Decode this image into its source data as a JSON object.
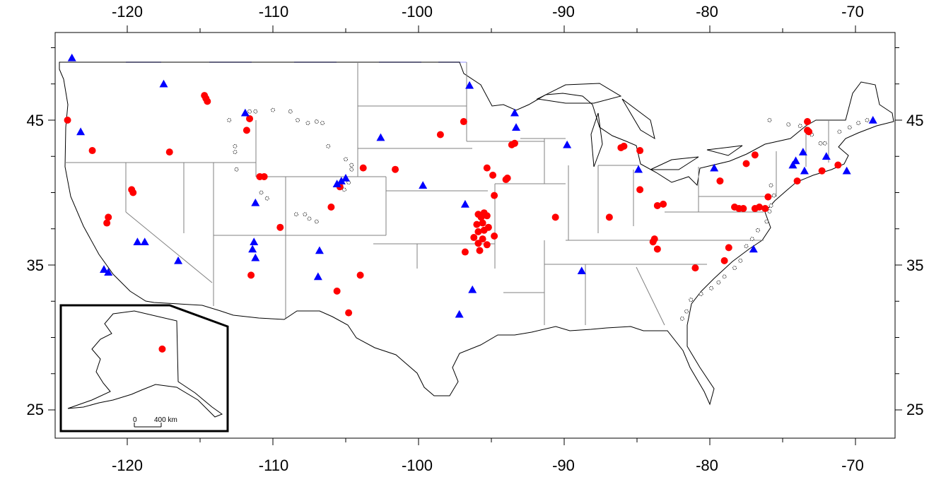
{
  "map": {
    "x_ticks": [
      "-120",
      "-110",
      "-100",
      "-90",
      "-80",
      "-70"
    ],
    "y_ticks": [
      "45",
      "35",
      "25"
    ],
    "inset": {
      "scale_zero": "0",
      "scale_label": "400 km"
    },
    "colors": {
      "circle_marker": "#ff0000",
      "triangle_marker": "#0000ff",
      "open_marker": "#000000",
      "boundary": "#000000",
      "state_line": "#808080",
      "canada_border": "#c8c8ff"
    },
    "markers": {
      "red_circles": [
        [
          -124.1,
          45.0
        ],
        [
          -122.4,
          42.9
        ],
        [
          -117.1,
          42.8
        ],
        [
          -114.7,
          46.7
        ],
        [
          -114.6,
          46.5
        ],
        [
          -114.5,
          46.3
        ],
        [
          -111.6,
          45.1
        ],
        [
          -111.8,
          44.3
        ],
        [
          -119.7,
          40.2
        ],
        [
          -119.6,
          40.0
        ],
        [
          -121.3,
          38.3
        ],
        [
          -121.4,
          37.9
        ],
        [
          -110.9,
          41.1
        ],
        [
          -110.6,
          41.1
        ],
        [
          -109.5,
          37.6
        ],
        [
          -111.5,
          34.3
        ],
        [
          -105.4,
          40.4
        ],
        [
          -106.0,
          39.0
        ],
        [
          -103.8,
          41.7
        ],
        [
          -101.6,
          41.6
        ],
        [
          -98.5,
          44.0
        ],
        [
          -96.9,
          44.9
        ],
        [
          -104.0,
          34.3
        ],
        [
          -105.6,
          33.2
        ],
        [
          -104.8,
          31.7
        ],
        [
          -96.8,
          35.9
        ],
        [
          -95.3,
          41.7
        ],
        [
          -94.9,
          41.2
        ],
        [
          -94.0,
          40.9
        ],
        [
          -93.9,
          41.0
        ],
        [
          -94.8,
          39.8
        ],
        [
          -93.4,
          43.4
        ],
        [
          -93.6,
          43.3
        ],
        [
          -95.5,
          38.6
        ],
        [
          -95.9,
          38.5
        ],
        [
          -95.7,
          38.3
        ],
        [
          -95.3,
          38.4
        ],
        [
          -95.6,
          37.9
        ],
        [
          -96.0,
          37.8
        ],
        [
          -95.2,
          37.6
        ],
        [
          -95.5,
          37.4
        ],
        [
          -95.9,
          37.3
        ],
        [
          -94.8,
          37.0
        ],
        [
          -96.2,
          36.9
        ],
        [
          -95.6,
          36.8
        ],
        [
          -95.3,
          36.4
        ],
        [
          -95.8,
          36.0
        ],
        [
          -95.9,
          36.5
        ],
        [
          -90.6,
          38.3
        ],
        [
          -86.9,
          38.3
        ],
        [
          -86.1,
          43.1
        ],
        [
          -85.9,
          43.2
        ],
        [
          -84.8,
          42.9
        ],
        [
          -84.8,
          40.2
        ],
        [
          -83.6,
          39.1
        ],
        [
          -83.2,
          39.2
        ],
        [
          -83.8,
          36.8
        ],
        [
          -83.9,
          36.6
        ],
        [
          -83.6,
          36.1
        ],
        [
          -81.0,
          34.8
        ],
        [
          -79.0,
          35.3
        ],
        [
          -78.7,
          36.2
        ],
        [
          -78.0,
          38.9
        ],
        [
          -77.7,
          38.9
        ],
        [
          -76.6,
          39.0
        ],
        [
          -76.0,
          39.7
        ],
        [
          -76.2,
          38.9
        ],
        [
          -76.9,
          38.9
        ],
        [
          -78.3,
          39.0
        ],
        [
          -79.3,
          40.8
        ],
        [
          -77.5,
          42.0
        ],
        [
          -76.9,
          42.6
        ],
        [
          -74.0,
          40.8
        ],
        [
          -73.2,
          44.2
        ],
        [
          -73.3,
          44.3
        ],
        [
          -73.3,
          44.9
        ],
        [
          -72.3,
          41.5
        ],
        [
          -71.2,
          41.9
        ],
        [
          -117.6,
          29.2
        ]
      ],
      "blue_triangles": [
        [
          -123.8,
          49.3
        ],
        [
          -123.2,
          44.2
        ],
        [
          -121.6,
          34.7
        ],
        [
          -121.3,
          34.5
        ],
        [
          -119.3,
          36.6
        ],
        [
          -118.8,
          36.6
        ],
        [
          -117.5,
          47.5
        ],
        [
          -116.5,
          35.3
        ],
        [
          -111.9,
          45.5
        ],
        [
          -111.2,
          39.3
        ],
        [
          -111.3,
          36.6
        ],
        [
          -111.4,
          36.1
        ],
        [
          -111.2,
          35.5
        ],
        [
          -106.8,
          36.0
        ],
        [
          -106.9,
          34.2
        ],
        [
          -105.6,
          40.6
        ],
        [
          -105.3,
          40.8
        ],
        [
          -105.0,
          41.0
        ],
        [
          -102.6,
          43.8
        ],
        [
          -99.7,
          40.5
        ],
        [
          -96.8,
          39.2
        ],
        [
          -96.3,
          33.3
        ],
        [
          -97.2,
          31.6
        ],
        [
          -96.5,
          47.4
        ],
        [
          -93.4,
          45.5
        ],
        [
          -93.3,
          44.5
        ],
        [
          -89.8,
          43.3
        ],
        [
          -88.8,
          34.6
        ],
        [
          -84.9,
          41.6
        ],
        [
          -79.7,
          41.7
        ],
        [
          -77.0,
          36.1
        ],
        [
          -74.3,
          41.9
        ],
        [
          -74.1,
          42.2
        ],
        [
          -73.6,
          42.8
        ],
        [
          -72.0,
          42.5
        ],
        [
          -73.5,
          41.5
        ],
        [
          -70.6,
          41.5
        ],
        [
          -68.8,
          45.0
        ]
      ],
      "open_circles": [
        [
          -113.0,
          45.0
        ],
        [
          -111.6,
          45.6
        ],
        [
          -111.2,
          45.6
        ],
        [
          -110.0,
          45.7
        ],
        [
          -108.8,
          45.6
        ],
        [
          -108.3,
          45.0
        ],
        [
          -107.6,
          44.8
        ],
        [
          -107.0,
          44.9
        ],
        [
          -106.6,
          44.8
        ],
        [
          -112.6,
          43.2
        ],
        [
          -112.6,
          42.8
        ],
        [
          -112.5,
          41.6
        ],
        [
          -110.8,
          40.0
        ],
        [
          -110.4,
          39.6
        ],
        [
          -108.4,
          38.5
        ],
        [
          -107.8,
          38.5
        ],
        [
          -107.5,
          38.2
        ],
        [
          -107.0,
          38.0
        ],
        [
          -106.2,
          43.2
        ],
        [
          -105.0,
          42.3
        ],
        [
          -104.6,
          41.9
        ],
        [
          -104.6,
          41.6
        ],
        [
          -104.8,
          40.7
        ],
        [
          -105.1,
          40.2
        ],
        [
          -75.9,
          45.0
        ],
        [
          -74.6,
          44.7
        ],
        [
          -73.8,
          44.6
        ],
        [
          -73.0,
          44.0
        ],
        [
          -72.4,
          43.4
        ],
        [
          -72.1,
          43.4
        ],
        [
          -71.1,
          44.2
        ],
        [
          -70.4,
          44.5
        ],
        [
          -69.8,
          44.8
        ],
        [
          -69.2,
          45.0
        ],
        [
          -75.8,
          40.5
        ],
        [
          -75.6,
          39.8
        ],
        [
          -75.8,
          39.1
        ],
        [
          -75.9,
          38.7
        ],
        [
          -76.1,
          38.0
        ],
        [
          -76.7,
          37.4
        ],
        [
          -77.1,
          36.8
        ],
        [
          -77.5,
          36.3
        ],
        [
          -77.9,
          35.3
        ],
        [
          -78.3,
          34.8
        ],
        [
          -79.0,
          34.2
        ],
        [
          -79.4,
          33.8
        ],
        [
          -79.9,
          33.4
        ],
        [
          -80.6,
          33.0
        ],
        [
          -81.3,
          32.6
        ],
        [
          -81.6,
          31.8
        ],
        [
          -81.9,
          31.3
        ]
      ]
    }
  }
}
